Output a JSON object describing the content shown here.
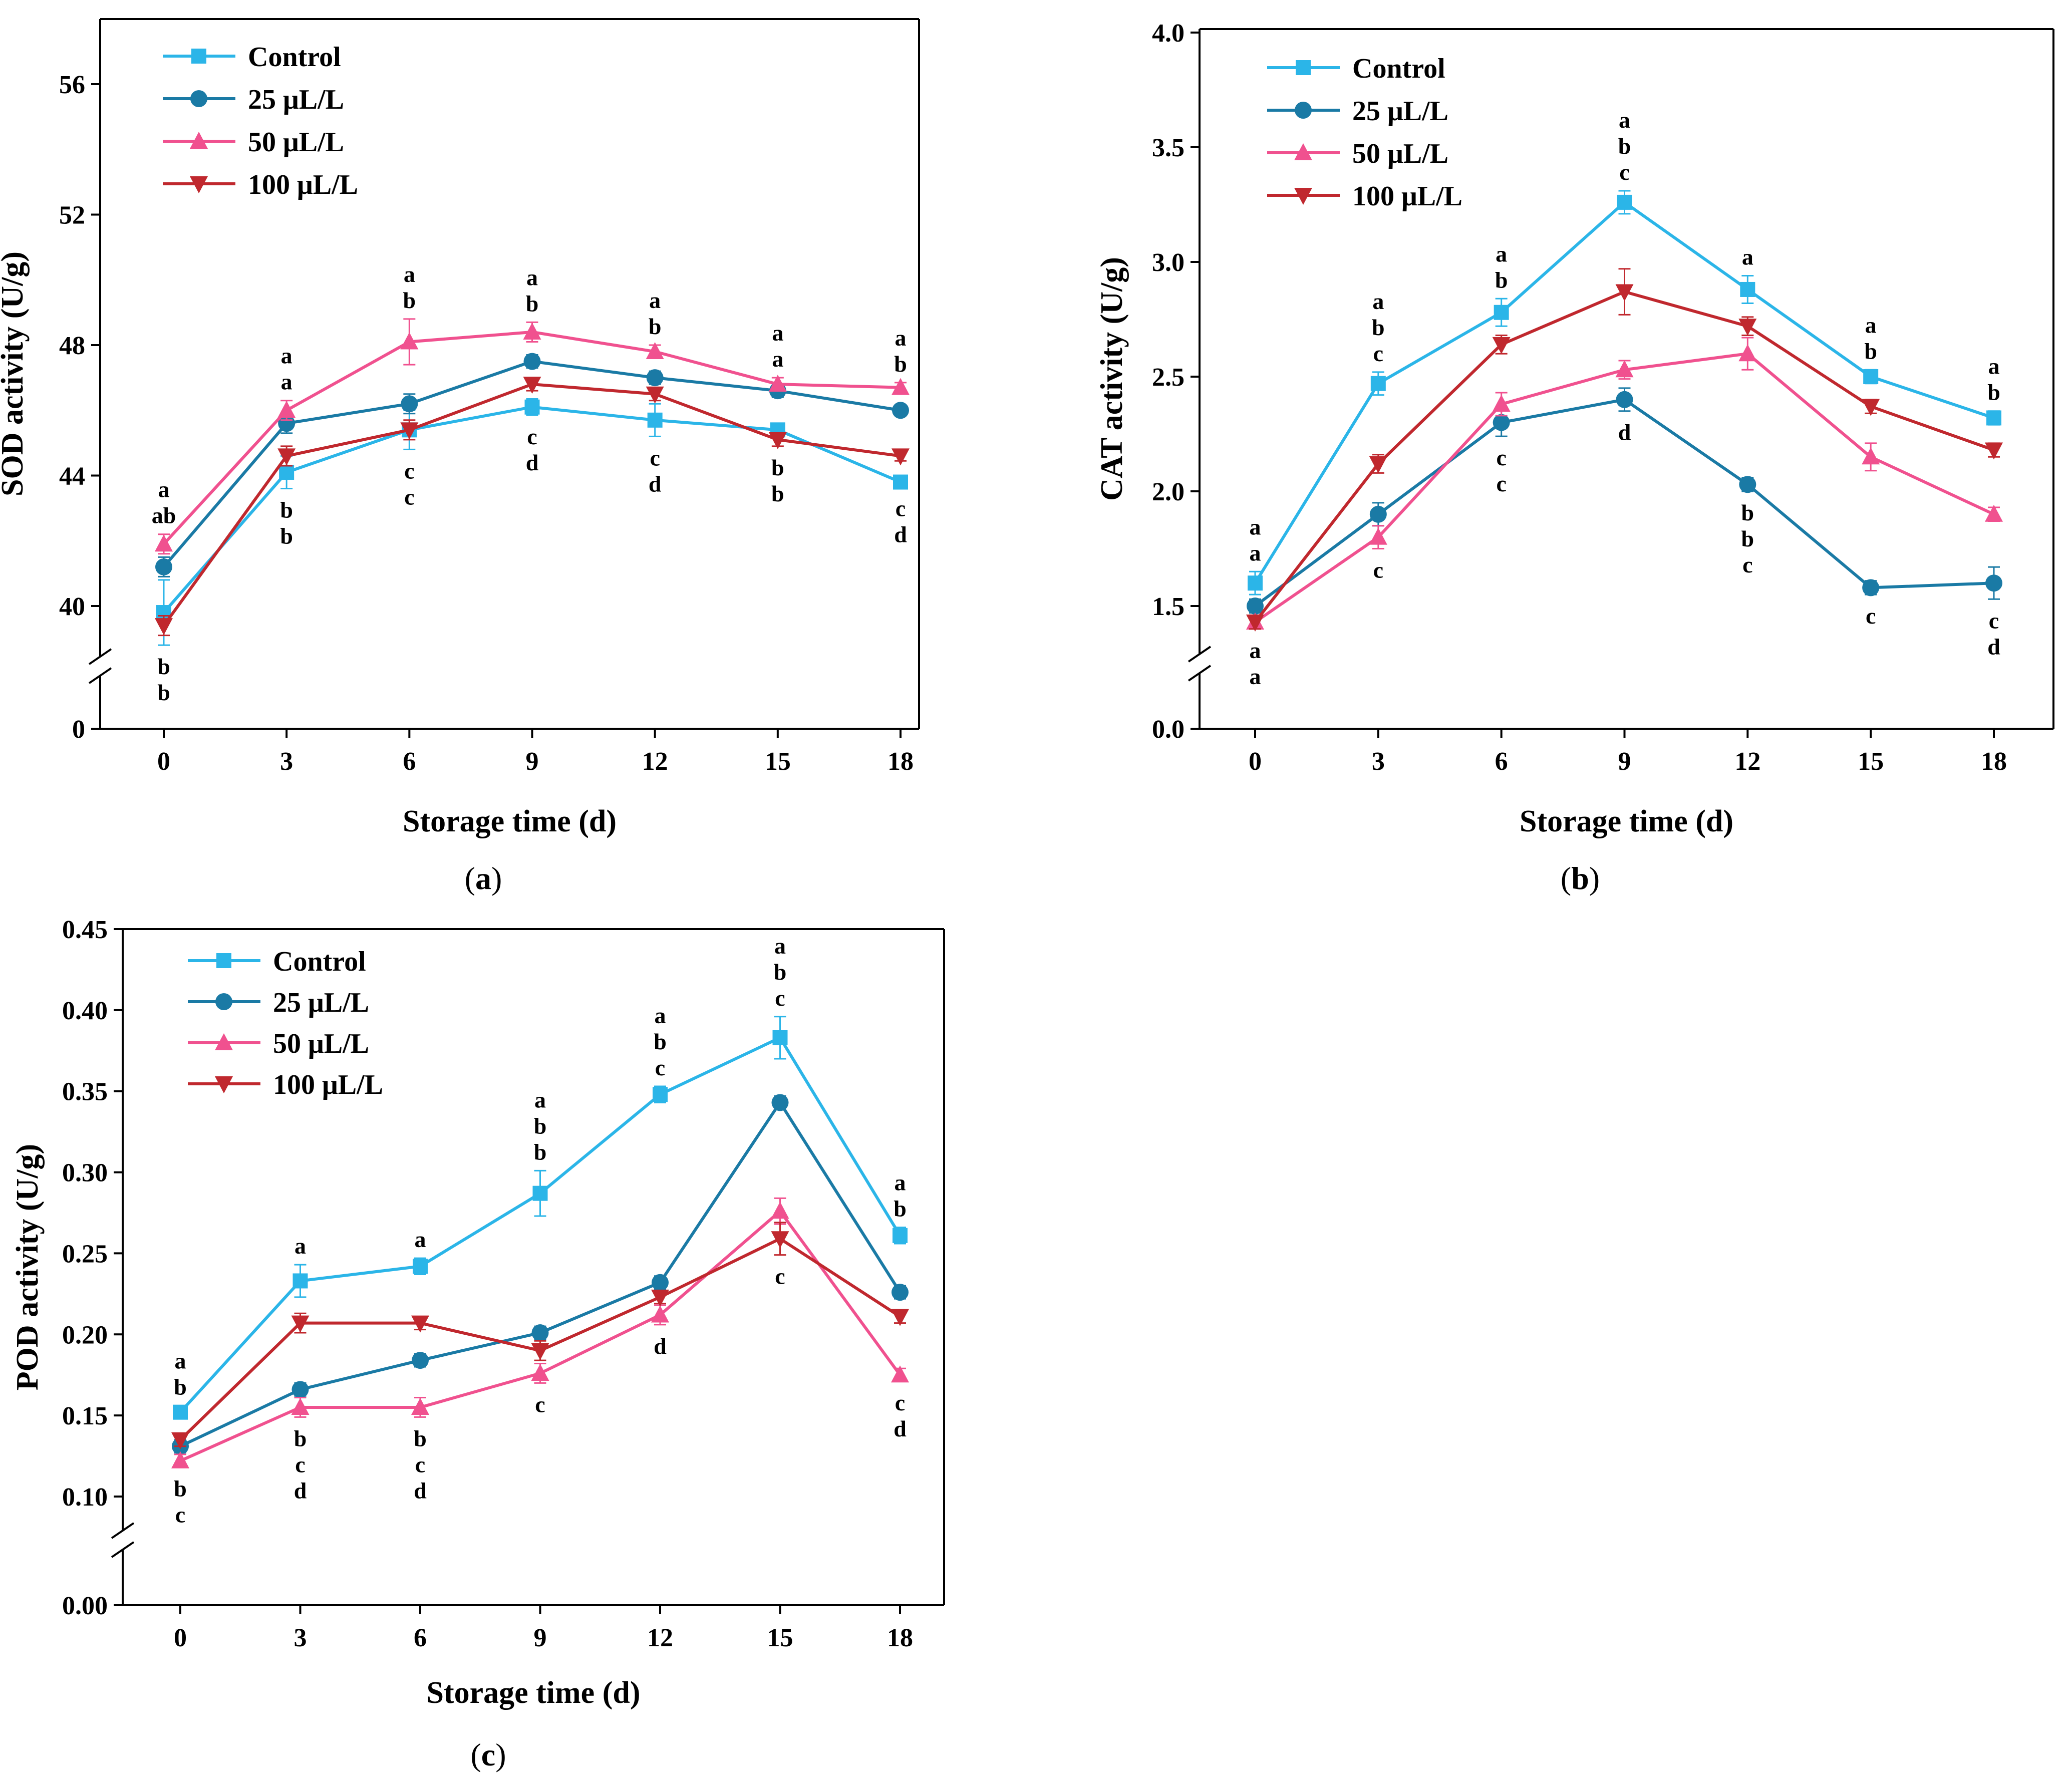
{
  "figure": {
    "series_names": [
      "Control",
      "25 μL/L",
      "50 μL/L",
      "100 μL/L"
    ],
    "series_colors": [
      "#2bb5e8",
      "#1a7aa5",
      "#f0518f",
      "#c0282e"
    ],
    "markers": [
      "square",
      "circle",
      "triangle-up",
      "triangle-down"
    ]
  },
  "chart_data": [
    {
      "type": "line",
      "panel_label": "a",
      "ylabel": "SOD activity (U/g)",
      "xlabel": "Storage time (d)",
      "x": [
        0,
        3,
        6,
        9,
        12,
        15,
        18
      ],
      "x_ticks": [
        "0",
        "3",
        "6",
        "9",
        "12",
        "15",
        "18"
      ],
      "y_ticks": [
        "0",
        "40",
        "44",
        "48",
        "52",
        "56"
      ],
      "y_break": true,
      "ylim_upper": [
        38,
        58
      ],
      "legend_position": "top-left",
      "series": [
        {
          "name": "Control",
          "values": [
            39.8,
            44.1,
            45.4,
            46.1,
            45.7,
            45.4,
            43.8
          ],
          "errors": [
            1.0,
            0.5,
            0.6,
            0.25,
            0.5,
            0.2,
            0.15
          ]
        },
        {
          "name": "25 μL/L",
          "values": [
            41.2,
            45.6,
            46.2,
            47.5,
            47.0,
            46.6,
            46.0
          ],
          "errors": [
            0.3,
            0.3,
            0.3,
            0.2,
            0.2,
            0.2,
            0.15
          ]
        },
        {
          "name": "50 μL/L",
          "values": [
            41.9,
            46.0,
            48.1,
            48.4,
            47.8,
            46.8,
            46.7
          ],
          "errors": [
            0.3,
            0.3,
            0.7,
            0.3,
            0.2,
            0.2,
            0.15
          ]
        },
        {
          "name": "100 μL/L",
          "values": [
            39.4,
            44.6,
            45.4,
            46.8,
            46.5,
            45.1,
            44.6
          ],
          "errors": [
            0.3,
            0.3,
            0.3,
            0.2,
            0.2,
            0.2,
            0.15
          ]
        }
      ],
      "significance": [
        {
          "x": 0,
          "above": [
            "a",
            "ab"
          ],
          "below": [
            "b",
            "b"
          ]
        },
        {
          "x": 3,
          "above": [
            "a",
            "a"
          ],
          "below": [
            "b",
            "b"
          ]
        },
        {
          "x": 6,
          "above": [
            "a",
            "b"
          ],
          "below": [
            "c",
            "c"
          ]
        },
        {
          "x": 9,
          "above": [
            "a",
            "b"
          ],
          "below": [
            "c",
            "d"
          ]
        },
        {
          "x": 12,
          "above": [
            "a",
            "b"
          ],
          "below": [
            "c",
            "d"
          ]
        },
        {
          "x": 15,
          "above": [
            "a",
            "a"
          ],
          "below": [
            "b",
            "b"
          ]
        },
        {
          "x": 18,
          "above": [
            "a",
            "b"
          ],
          "below": [
            "c",
            "d"
          ]
        }
      ]
    },
    {
      "type": "line",
      "panel_label": "b",
      "ylabel": "CAT activity (U/g)",
      "xlabel": "Storage time (d)",
      "x": [
        0,
        3,
        6,
        9,
        12,
        15,
        18
      ],
      "x_ticks": [
        "0",
        "3",
        "6",
        "9",
        "12",
        "15",
        "18"
      ],
      "y_ticks": [
        "0.0",
        "1.5",
        "2.0",
        "2.5",
        "3.0",
        "3.5",
        "4.0"
      ],
      "y_break": true,
      "ylim_upper": [
        1.4,
        4.0
      ],
      "legend_position": "top-left",
      "series": [
        {
          "name": "Control",
          "values": [
            1.6,
            2.47,
            2.78,
            3.26,
            2.88,
            2.5,
            2.32
          ],
          "errors": [
            0.05,
            0.05,
            0.06,
            0.05,
            0.06,
            0.03,
            0.03
          ]
        },
        {
          "name": "25 μL/L",
          "values": [
            1.5,
            1.9,
            2.3,
            2.4,
            2.03,
            1.58,
            1.6
          ],
          "errors": [
            0.03,
            0.05,
            0.06,
            0.05,
            0.03,
            0.03,
            0.07
          ]
        },
        {
          "name": "50 μL/L",
          "values": [
            1.43,
            1.8,
            2.38,
            2.53,
            2.6,
            2.15,
            1.9
          ],
          "errors": [
            0.03,
            0.05,
            0.05,
            0.04,
            0.07,
            0.06,
            0.03
          ]
        },
        {
          "name": "100 μL/L",
          "values": [
            1.43,
            2.12,
            2.64,
            2.87,
            2.72,
            2.37,
            2.18
          ],
          "errors": [
            0.03,
            0.04,
            0.04,
            0.1,
            0.04,
            0.03,
            0.03
          ]
        }
      ],
      "significance": [
        {
          "x": 0,
          "above": [
            "a",
            "a"
          ],
          "below": [
            "a",
            "a"
          ]
        },
        {
          "x": 3,
          "above": [
            "a",
            "b",
            "c"
          ],
          "below": [
            "c"
          ]
        },
        {
          "x": 6,
          "above": [
            "a",
            "b"
          ],
          "below": [
            "c",
            "c"
          ]
        },
        {
          "x": 9,
          "above": [
            "a",
            "b",
            "c"
          ],
          "below": [
            "d"
          ]
        },
        {
          "x": 12,
          "above": [
            "a"
          ],
          "below": [
            "b",
            "b",
            "c"
          ]
        },
        {
          "x": 15,
          "above": [
            "a",
            "b"
          ],
          "below": [
            "c"
          ]
        },
        {
          "x": 18,
          "above": [
            "a",
            "b"
          ],
          "below": [
            "c",
            "d"
          ]
        }
      ]
    },
    {
      "type": "line",
      "panel_label": "c",
      "ylabel": "POD activity (U/g)",
      "xlabel": "Storage time (d)",
      "x": [
        0,
        3,
        6,
        9,
        12,
        15,
        18
      ],
      "x_ticks": [
        "0",
        "3",
        "6",
        "9",
        "12",
        "15",
        "18"
      ],
      "y_ticks": [
        "0.00",
        "0.10",
        "0.15",
        "0.20",
        "0.25",
        "0.30",
        "0.35",
        "0.40",
        "0.45"
      ],
      "y_break": true,
      "ylim_upper": [
        0.09,
        0.45
      ],
      "legend_position": "top-left",
      "series": [
        {
          "name": "Control",
          "values": [
            0.152,
            0.233,
            0.242,
            0.287,
            0.348,
            0.383,
            0.261
          ],
          "errors": [
            0.004,
            0.01,
            0.005,
            0.014,
            0.005,
            0.013,
            0.005
          ]
        },
        {
          "name": "25 μL/L",
          "values": [
            0.131,
            0.166,
            0.184,
            0.201,
            0.232,
            0.343,
            0.226
          ],
          "errors": [
            0.004,
            0.004,
            0.004,
            0.004,
            0.004,
            0.004,
            0.004
          ]
        },
        {
          "name": "50 μL/L",
          "values": [
            0.122,
            0.155,
            0.155,
            0.176,
            0.212,
            0.276,
            0.175
          ],
          "errors": [
            0.004,
            0.006,
            0.006,
            0.006,
            0.006,
            0.008,
            0.004
          ]
        },
        {
          "name": "100 μL/L",
          "values": [
            0.135,
            0.207,
            0.207,
            0.19,
            0.223,
            0.259,
            0.211
          ],
          "errors": [
            0.004,
            0.006,
            0.004,
            0.006,
            0.004,
            0.01,
            0.004
          ]
        }
      ],
      "significance": [
        {
          "x": 0,
          "above": [
            "a",
            "b"
          ],
          "below": [
            "b",
            "c"
          ]
        },
        {
          "x": 3,
          "above": [
            "a"
          ],
          "below": [
            "b",
            "c",
            "d"
          ]
        },
        {
          "x": 6,
          "above": [
            "a"
          ],
          "below": [
            "b",
            "c",
            "d"
          ]
        },
        {
          "x": 9,
          "above": [
            "a",
            "b",
            "b"
          ],
          "below": [
            "c"
          ]
        },
        {
          "x": 12,
          "above": [
            "a",
            "b",
            "c"
          ],
          "below": [
            "d"
          ]
        },
        {
          "x": 15,
          "above": [
            "a",
            "b",
            "c"
          ],
          "below": [
            "c"
          ]
        },
        {
          "x": 18,
          "above": [
            "a",
            "b"
          ],
          "below": [
            "c",
            "d"
          ]
        }
      ]
    }
  ]
}
